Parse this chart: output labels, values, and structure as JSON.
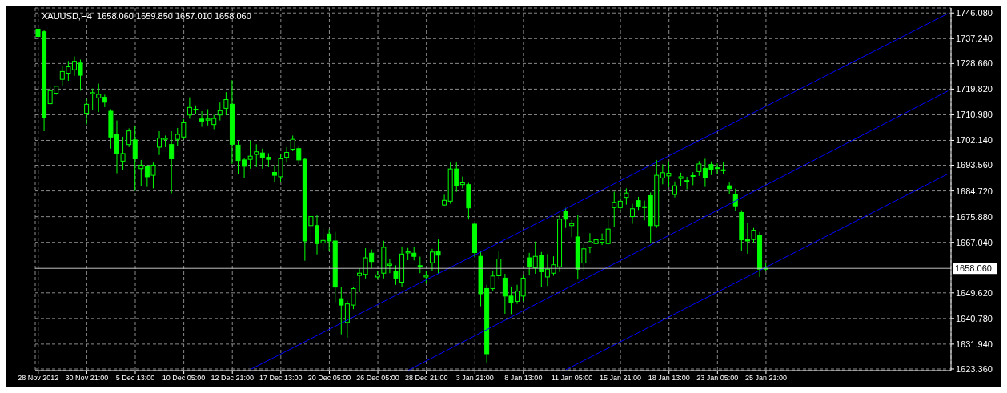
{
  "chart_data": {
    "type": "candlestick",
    "title": "XAUUSD,H4  1658.060 1659.850 1657.010 1658.060",
    "categories": [
      "28 Nov 2012",
      null,
      null,
      null,
      null,
      null,
      null,
      null,
      "30 Nov 21:00",
      null,
      null,
      null,
      null,
      null,
      null,
      null,
      "5 Dec 13:00",
      null,
      null,
      null,
      null,
      null,
      null,
      null,
      "10 Dec 05:00",
      null,
      null,
      null,
      null,
      null,
      null,
      null,
      "12 Dec 21:00",
      null,
      null,
      null,
      null,
      null,
      null,
      null,
      "17 Dec 13:00",
      null,
      null,
      null,
      null,
      null,
      null,
      null,
      "20 Dec 05:00",
      null,
      null,
      null,
      null,
      null,
      null,
      null,
      "26 Dec 05:00",
      null,
      null,
      null,
      null,
      null,
      null,
      null,
      "28 Dec 21:00",
      null,
      null,
      null,
      null,
      null,
      null,
      null,
      "3 Jan 21:00",
      null,
      null,
      null,
      null,
      null,
      null,
      null,
      "8 Jan 13:00",
      null,
      null,
      null,
      null,
      null,
      null,
      null,
      "11 Jan 05:00",
      null,
      null,
      null,
      null,
      null,
      null,
      null,
      "15 Jan 21:00",
      null,
      null,
      null,
      null,
      null,
      null,
      null,
      "18 Jan 13:00",
      null,
      null,
      null,
      null,
      null,
      null,
      null,
      "23 Jan 05:00",
      null,
      null,
      null,
      null,
      null,
      null,
      null,
      "25 Jan 21:00",
      null,
      null,
      null,
      null,
      null,
      null,
      null,
      null,
      null,
      null,
      null,
      null,
      null,
      null,
      null,
      null,
      null,
      null,
      null,
      null,
      null,
      null,
      null,
      null,
      null,
      null,
      null,
      null,
      null,
      null
    ],
    "series": [
      {
        "color": "#00ff00",
        "ohlc": [
          [
            1740.5,
            1741.8,
            1737.1,
            1738.0
          ],
          [
            1739.6,
            1740.1,
            1705.3,
            1710.0
          ],
          [
            1714.8,
            1720.6,
            1714.4,
            1719.3
          ],
          [
            1718.4,
            1721.0,
            1717.9,
            1720.8
          ],
          [
            1723.2,
            1727.8,
            1721.0,
            1725.9
          ],
          [
            1725.3,
            1729.5,
            1722.7,
            1727.5
          ],
          [
            1726.5,
            1731.1,
            1724.4,
            1729.4
          ],
          [
            1728.8,
            1730.0,
            1719.3,
            1724.6
          ],
          [
            1711.5,
            1716.5,
            1707.6,
            1714.6
          ],
          [
            1718.2,
            1720.0,
            1712.7,
            1718.6
          ],
          [
            1716.8,
            1721.7,
            1711.9,
            1718.0
          ],
          [
            1717.0,
            1717.9,
            1713.6,
            1715.3
          ],
          [
            1712.2,
            1712.9,
            1699.3,
            1703.3
          ],
          [
            1704.2,
            1709.0,
            1690.8,
            1697.6
          ],
          [
            1695.0,
            1703.4,
            1692.0,
            1697.6
          ],
          [
            1700.7,
            1706.3,
            1699.8,
            1705.4
          ],
          [
            1702.3,
            1707.3,
            1684.7,
            1695.8
          ],
          [
            1692.4,
            1695.4,
            1686.5,
            1693.6
          ],
          [
            1693.2,
            1693.6,
            1686.1,
            1689.6
          ],
          [
            1690.1,
            1694.5,
            1685.6,
            1693.6
          ],
          [
            1699.8,
            1705.3,
            1697.1,
            1702.9
          ],
          [
            1702.5,
            1703.8,
            1699.8,
            1702.9
          ],
          [
            1700.7,
            1705.3,
            1683.9,
            1695.8
          ],
          [
            1702.5,
            1706.4,
            1700.3,
            1704.2
          ],
          [
            1703.3,
            1709.5,
            1702.5,
            1708.2
          ],
          [
            1710.9,
            1717.0,
            1709.6,
            1713.5
          ],
          [
            1712.6,
            1714.2,
            1711.1,
            1712.9
          ],
          [
            1709.5,
            1712.2,
            1706.8,
            1708.8
          ],
          [
            1709.1,
            1712.9,
            1707.3,
            1709.5
          ],
          [
            1707.6,
            1711.0,
            1706.0,
            1709.7
          ],
          [
            1710.9,
            1715.2,
            1709.0,
            1712.4
          ],
          [
            1713.2,
            1718.8,
            1710.8,
            1716.2
          ],
          [
            1714.6,
            1722.9,
            1694.0,
            1700.8
          ],
          [
            1700.5,
            1702.0,
            1690.5,
            1695.2
          ],
          [
            1695.4,
            1696.0,
            1689.3,
            1693.2
          ],
          [
            1695.6,
            1702.1,
            1692.4,
            1696.7
          ],
          [
            1697.3,
            1700.8,
            1692.9,
            1698.2
          ],
          [
            1697.8,
            1699.3,
            1692.4,
            1696.3
          ],
          [
            1696.3,
            1697.7,
            1692.9,
            1695.6
          ],
          [
            1691.1,
            1693.6,
            1687.8,
            1690.1
          ],
          [
            1689.6,
            1697.3,
            1687.7,
            1695.8
          ],
          [
            1696.3,
            1699.8,
            1694.5,
            1698.0
          ],
          [
            1699.1,
            1703.8,
            1698.4,
            1702.5
          ],
          [
            1699.3,
            1700.2,
            1694.0,
            1695.4
          ],
          [
            1695.6,
            1696.2,
            1660.7,
            1667.5
          ],
          [
            1672.8,
            1676.6,
            1666.0,
            1675.9
          ],
          [
            1672.8,
            1676.3,
            1662.9,
            1666.6
          ],
          [
            1666.8,
            1671.9,
            1664.4,
            1667.7
          ],
          [
            1669.9,
            1671.5,
            1664.0,
            1667.5
          ],
          [
            1667.5,
            1670.6,
            1646.4,
            1651.6
          ],
          [
            1647.6,
            1651.6,
            1635.3,
            1645.4
          ],
          [
            1639.4,
            1646.9,
            1634.2,
            1645.8
          ],
          [
            1645.4,
            1651.5,
            1644.0,
            1651.1
          ],
          [
            1655.6,
            1658.1,
            1649.9,
            1656.4
          ],
          [
            1656.0,
            1665.0,
            1654.6,
            1661.7
          ],
          [
            1663.3,
            1664.6,
            1658.1,
            1660.4
          ],
          [
            1655.1,
            1657.3,
            1654.2,
            1655.8
          ],
          [
            1656.4,
            1667.6,
            1654.6,
            1665.3
          ],
          [
            1659.1,
            1661.2,
            1656.4,
            1659.5
          ],
          [
            1656.9,
            1659.1,
            1652.4,
            1654.7
          ],
          [
            1653.3,
            1665.6,
            1651.6,
            1663.0
          ],
          [
            1663.4,
            1665.1,
            1660.9,
            1663.8
          ],
          [
            1663.3,
            1665.5,
            1660.8,
            1662.2
          ],
          [
            1659.0,
            1662.1,
            1656.4,
            1658.5
          ],
          [
            1655.1,
            1657.3,
            1652.8,
            1655.6
          ],
          [
            1660.0,
            1664.8,
            1657.3,
            1663.7
          ],
          [
            1663.8,
            1668.0,
            1656.2,
            1662.6
          ],
          [
            1679.9,
            1683.4,
            1679.6,
            1681.5
          ],
          [
            1681.2,
            1694.5,
            1680.3,
            1692.3
          ],
          [
            1692.3,
            1694.5,
            1684.4,
            1686.5
          ],
          [
            1686.9,
            1689.7,
            1685.6,
            1687.5
          ],
          [
            1686.9,
            1687.5,
            1674.9,
            1678.9
          ],
          [
            1673.3,
            1673.5,
            1662.0,
            1663.5
          ],
          [
            1662.2,
            1663.9,
            1645.0,
            1649.3
          ],
          [
            1651.1,
            1652.4,
            1625.5,
            1628.6
          ],
          [
            1651.1,
            1657.3,
            1650.2,
            1655.4
          ],
          [
            1655.5,
            1664.2,
            1654.2,
            1661.3
          ],
          [
            1654.7,
            1656.2,
            1642.4,
            1648.5
          ],
          [
            1648.5,
            1651.8,
            1642.3,
            1646.2
          ],
          [
            1646.7,
            1652.4,
            1645.8,
            1650.2
          ],
          [
            1648.5,
            1655.8,
            1646.7,
            1654.7
          ],
          [
            1661.7,
            1663.4,
            1655.6,
            1658.6
          ],
          [
            1658.2,
            1667.3,
            1656.2,
            1662.2
          ],
          [
            1662.6,
            1663.7,
            1651.5,
            1656.9
          ],
          [
            1655.1,
            1663.0,
            1652.0,
            1657.8
          ],
          [
            1656.4,
            1662.2,
            1655.5,
            1659.3
          ],
          [
            1658.6,
            1676.3,
            1656.8,
            1675.0
          ],
          [
            1677.7,
            1678.9,
            1672.0,
            1675.0
          ],
          [
            1672.8,
            1674.7,
            1668.8,
            1673.5
          ],
          [
            1668.9,
            1676.6,
            1654.2,
            1657.8
          ],
          [
            1659.9,
            1666.4,
            1657.3,
            1664.8
          ],
          [
            1665.3,
            1670.2,
            1663.3,
            1667.3
          ],
          [
            1666.6,
            1674.0,
            1663.9,
            1667.9
          ],
          [
            1667.1,
            1670.1,
            1666.1,
            1668.0
          ],
          [
            1666.6,
            1675.0,
            1666.2,
            1671.6
          ],
          [
            1679.0,
            1684.5,
            1672.4,
            1680.8
          ],
          [
            1679.0,
            1684.9,
            1677.7,
            1681.2
          ],
          [
            1682.5,
            1685.6,
            1680.0,
            1684.0
          ],
          [
            1675.9,
            1680.3,
            1673.4,
            1678.6
          ],
          [
            1681.4,
            1682.7,
            1678.2,
            1679.4
          ],
          [
            1679.3,
            1681.4,
            1674.6,
            1679.1
          ],
          [
            1683.1,
            1684.2,
            1666.7,
            1672.8
          ],
          [
            1672.8,
            1695.4,
            1672.0,
            1690.1
          ],
          [
            1689.2,
            1693.9,
            1687.0,
            1691.0
          ],
          [
            1689.9,
            1694.9,
            1686.0,
            1690.8
          ],
          [
            1683.5,
            1688.0,
            1682.5,
            1686.5
          ],
          [
            1689.0,
            1691.0,
            1686.5,
            1689.6
          ],
          [
            1688.1,
            1689.6,
            1685.3,
            1688.3
          ],
          [
            1689.8,
            1691.2,
            1686.7,
            1690.0
          ],
          [
            1691.4,
            1695.0,
            1689.9,
            1694.0
          ],
          [
            1692.5,
            1695.8,
            1686.1,
            1689.2
          ],
          [
            1693.8,
            1694.9,
            1690.2,
            1692.2
          ],
          [
            1692.7,
            1694.2,
            1690.4,
            1692.5
          ],
          [
            1692.0,
            1694.7,
            1690.4,
            1691.7
          ],
          [
            1686.5,
            1687.6,
            1683.5,
            1685.5
          ],
          [
            1683.4,
            1685.5,
            1677.8,
            1679.6
          ],
          [
            1677.3,
            1678.1,
            1664.2,
            1667.9
          ],
          [
            1668.0,
            1673.8,
            1663.1,
            1667.5
          ],
          [
            1668.0,
            1672.0,
            1666.9,
            1671.2
          ],
          [
            1669.3,
            1670.6,
            1655.1,
            1657.8
          ],
          [
            1658.06,
            1659.85,
            1657.01,
            1658.06
          ],
          null,
          null,
          null,
          null,
          null,
          null,
          null,
          null,
          null,
          null,
          null,
          null,
          null,
          null,
          null,
          null,
          null,
          null,
          null,
          null,
          null,
          null,
          null,
          null,
          null,
          null,
          null,
          null,
          null,
          null
        ]
      },
      {
        "type": "line",
        "color": "#0000ff",
        "values": [
          null,
          null,
          null,
          null,
          null,
          null,
          null,
          null,
          null,
          null,
          null,
          null,
          null,
          null,
          null,
          null,
          null,
          null,
          null,
          null,
          null,
          null,
          null,
          null,
          null,
          null,
          null,
          null,
          null,
          null,
          null,
          null,
          null,
          null,
          null,
          1623.2,
          null,
          null,
          null,
          null,
          null,
          null,
          null,
          null,
          null,
          null,
          null,
          null,
          null,
          null,
          null,
          null,
          null,
          null,
          null,
          null,
          null,
          null,
          null,
          null,
          null,
          null,
          null,
          null,
          null,
          null,
          null,
          null,
          null,
          null,
          null,
          null,
          null,
          null,
          null,
          null,
          null,
          null,
          null,
          null,
          null,
          null,
          null,
          null,
          null,
          null,
          null,
          null,
          null,
          null,
          null,
          null,
          null,
          null,
          null,
          null,
          null,
          null,
          null,
          null,
          null,
          null,
          null,
          null,
          null,
          null,
          null,
          null,
          null,
          null,
          null,
          null,
          null,
          null,
          null,
          null,
          null,
          null,
          null,
          null,
          null,
          null,
          null,
          null,
          null,
          null,
          null,
          null,
          null,
          null,
          null,
          null,
          null,
          null,
          null,
          null,
          null,
          null,
          null,
          null,
          null,
          null,
          null,
          null,
          null,
          null,
          null,
          null,
          null,
          null,
          1745.9
        ]
      },
      {
        "type": "line",
        "color": "#0000ff",
        "values": [
          null,
          null,
          null,
          null,
          null,
          null,
          null,
          null,
          null,
          null,
          null,
          null,
          null,
          null,
          null,
          null,
          null,
          null,
          null,
          null,
          null,
          null,
          null,
          null,
          null,
          null,
          null,
          null,
          null,
          null,
          null,
          null,
          null,
          null,
          null,
          null,
          null,
          null,
          null,
          null,
          null,
          null,
          null,
          null,
          null,
          null,
          null,
          null,
          null,
          null,
          null,
          null,
          null,
          null,
          null,
          null,
          null,
          null,
          null,
          null,
          null,
          1622.9,
          null,
          null,
          null,
          null,
          null,
          null,
          null,
          null,
          null,
          null,
          null,
          null,
          null,
          null,
          null,
          null,
          null,
          null,
          null,
          null,
          null,
          null,
          null,
          null,
          null,
          null,
          null,
          null,
          null,
          null,
          null,
          null,
          null,
          null,
          null,
          null,
          null,
          null,
          null,
          null,
          null,
          null,
          null,
          null,
          null,
          null,
          null,
          null,
          null,
          null,
          null,
          null,
          null,
          null,
          null,
          null,
          null,
          null,
          null,
          null,
          null,
          null,
          null,
          null,
          null,
          null,
          null,
          null,
          null,
          null,
          null,
          null,
          null,
          null,
          null,
          null,
          null,
          null,
          null,
          null,
          null,
          null,
          null,
          null,
          null,
          null,
          null,
          null,
          1719.2
        ]
      },
      {
        "type": "line",
        "color": "#0000ff",
        "values": [
          null,
          null,
          null,
          null,
          null,
          null,
          null,
          null,
          null,
          null,
          null,
          null,
          null,
          null,
          null,
          null,
          null,
          null,
          null,
          null,
          null,
          null,
          null,
          null,
          null,
          null,
          null,
          null,
          null,
          null,
          null,
          null,
          null,
          null,
          null,
          null,
          null,
          null,
          null,
          null,
          null,
          null,
          null,
          null,
          null,
          null,
          null,
          null,
          null,
          null,
          null,
          null,
          null,
          null,
          null,
          null,
          null,
          null,
          null,
          null,
          null,
          null,
          null,
          null,
          null,
          null,
          null,
          null,
          null,
          null,
          null,
          null,
          null,
          null,
          null,
          null,
          null,
          null,
          null,
          null,
          null,
          null,
          null,
          null,
          null,
          null,
          null,
          1623.1,
          null,
          null,
          null,
          null,
          null,
          null,
          null,
          null,
          null,
          null,
          null,
          null,
          null,
          null,
          null,
          null,
          null,
          null,
          null,
          null,
          null,
          null,
          null,
          null,
          null,
          null,
          null,
          null,
          null,
          null,
          null,
          null,
          null,
          null,
          null,
          null,
          null,
          null,
          null,
          null,
          null,
          null,
          null,
          null,
          null,
          null,
          null,
          null,
          null,
          null,
          null,
          null,
          null,
          null,
          null,
          null,
          null,
          null,
          null,
          null,
          null,
          null,
          1690.6
        ]
      }
    ],
    "ylim": [
      1622.8,
      1747.8
    ],
    "yticks": [
      {
        "value": 1623.36,
        "label": "1623.360"
      },
      {
        "value": 1631.94,
        "label": "1631.940"
      },
      {
        "value": 1640.78,
        "label": "1640.780"
      },
      {
        "value": 1649.62,
        "label": "1649.620"
      },
      {
        "value": 1667.04,
        "label": "1667.040"
      },
      {
        "value": 1675.88,
        "label": "1675.880"
      },
      {
        "value": 1684.72,
        "label": "1684.720"
      },
      {
        "value": 1693.56,
        "label": "1693.560"
      },
      {
        "value": 1702.14,
        "label": "1702.140"
      },
      {
        "value": 1710.98,
        "label": "1710.980"
      },
      {
        "value": 1719.82,
        "label": "1719.820"
      },
      {
        "value": 1728.66,
        "label": "1728.660"
      },
      {
        "value": 1737.24,
        "label": "1737.240"
      },
      {
        "value": 1746.08,
        "label": "1746.080"
      }
    ],
    "ref_lines": [
      {
        "axis": "y",
        "value": 1658.06,
        "label": "1658.060",
        "color": "#c0c0c0"
      }
    ],
    "grid": true
  }
}
